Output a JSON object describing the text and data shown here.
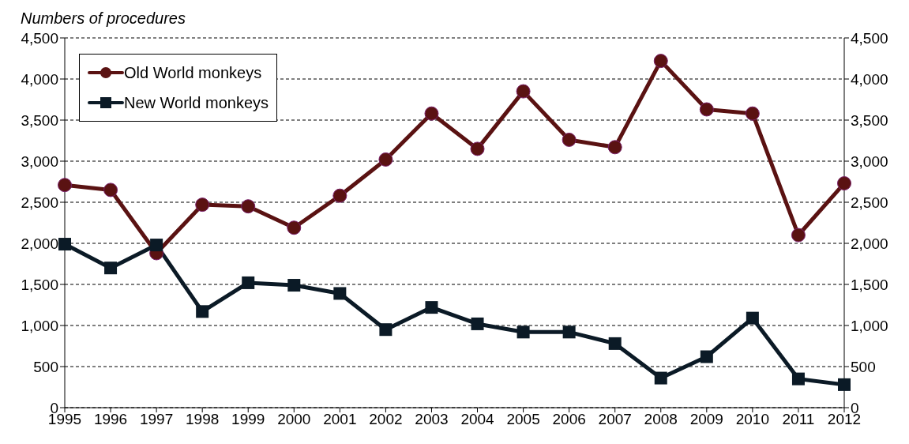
{
  "chart_data": {
    "type": "line",
    "ylabel": "Numbers of procedures",
    "categories": [
      "1995",
      "1996",
      "1997",
      "1998",
      "1999",
      "2000",
      "2001",
      "2002",
      "2003",
      "2004",
      "2005",
      "2006",
      "2007",
      "2008",
      "2009",
      "2010",
      "2011",
      "2012"
    ],
    "series": [
      {
        "name": "Old World monkeys",
        "color": "#5a1212",
        "marker": "circle",
        "values": [
          2710,
          2650,
          1880,
          2470,
          2450,
          2190,
          2580,
          3020,
          3580,
          3150,
          3850,
          3260,
          3170,
          4220,
          3630,
          3580,
          2100,
          2730
        ]
      },
      {
        "name": "New World monkeys",
        "color": "#0b1a26",
        "marker": "square",
        "values": [
          1990,
          1700,
          1980,
          1170,
          1520,
          1490,
          1390,
          950,
          1220,
          1020,
          920,
          920,
          780,
          360,
          620,
          1090,
          350,
          280
        ]
      }
    ],
    "ylim": [
      0,
      4500
    ],
    "yticks": [
      0,
      500,
      {
        "value": 1000,
        "label": "1,000"
      },
      {
        "value": 1500,
        "label": "1,500"
      },
      {
        "value": 2000,
        "label": "2,000"
      },
      {
        "value": 2500,
        "label": "2,500"
      },
      {
        "value": 3000,
        "label": "3,000"
      },
      {
        "value": 3500,
        "label": "3,500"
      },
      {
        "value": 4000,
        "label": "4,000"
      },
      {
        "value": 4500,
        "label": "4,500"
      }
    ],
    "y2lim": [
      0,
      4500
    ],
    "y2ticks": [
      0,
      500,
      {
        "value": 1000,
        "label": "1,000"
      },
      {
        "value": 1500,
        "label": "1,500"
      },
      {
        "value": 2000,
        "label": "2,000"
      },
      {
        "value": 2500,
        "label": "2,500"
      },
      {
        "value": 3000,
        "label": "3,000"
      },
      {
        "value": 3500,
        "label": "3,500"
      },
      {
        "value": 4000,
        "label": "4,000"
      },
      {
        "value": 4500,
        "label": "4,500"
      }
    ],
    "grid": "y",
    "legend": "top left",
    "line_style": "solid"
  }
}
